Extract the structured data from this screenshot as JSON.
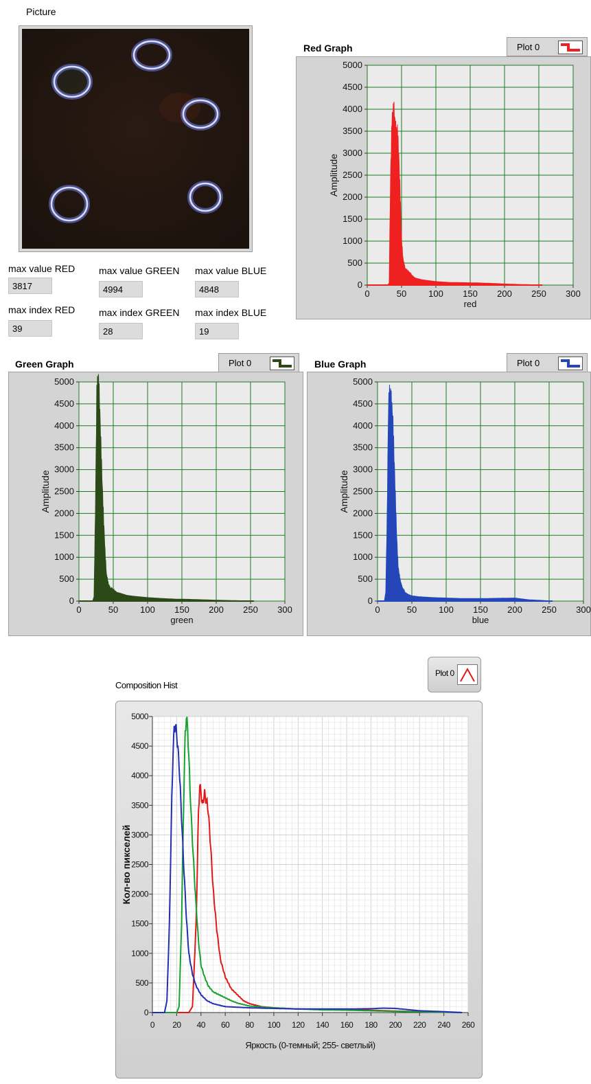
{
  "picture": {
    "label": "Picture"
  },
  "stats": {
    "max_value_red_label": "max value RED",
    "max_value_red": "3817",
    "max_value_green_label": "max value GREEN",
    "max_value_green": "4994",
    "max_value_blue_label": "max value BLUE",
    "max_value_blue": "4848",
    "max_index_red_label": "max index RED",
    "max_index_red": "39",
    "max_index_green_label": "max index GREEN",
    "max_index_green": "28",
    "max_index_blue_label": "max index BLUE",
    "max_index_blue": "19"
  },
  "red_graph": {
    "title": "Red Graph",
    "legend": "Plot 0",
    "xlabel": "red",
    "ylabel": "Amplitude",
    "color": "#ee2020"
  },
  "green_graph": {
    "title": "Green Graph",
    "legend": "Plot 0",
    "xlabel": "green",
    "ylabel": "Amplitude",
    "color": "#2b4a18"
  },
  "blue_graph": {
    "title": "Blue Graph",
    "legend": "Plot 0",
    "xlabel": "blue",
    "ylabel": "Amplitude",
    "color": "#2446b8"
  },
  "composition": {
    "title": "Composition Hist",
    "legend": "Plot 0",
    "xlabel": "Яркость (0-темный; 255- светлый)",
    "ylabel": "Кол-во пикселей"
  },
  "chart_data": [
    {
      "type": "bar",
      "title": "Red Graph",
      "xlabel": "red",
      "ylabel": "Amplitude",
      "xlim": [
        0,
        300
      ],
      "ylim": [
        0,
        5000
      ],
      "x_ticks": [
        0,
        50,
        100,
        150,
        200,
        250,
        300
      ],
      "y_ticks": [
        0,
        500,
        1000,
        1500,
        2000,
        2500,
        3000,
        3500,
        4000,
        4500,
        5000
      ],
      "grid": true,
      "series": [
        {
          "name": "Plot 0",
          "x": [
            0,
            30,
            32,
            34,
            36,
            38,
            39,
            40,
            42,
            44,
            46,
            48,
            50,
            52,
            55,
            60,
            65,
            70,
            80,
            90,
            100,
            120,
            140,
            160,
            180,
            200,
            220,
            240,
            255
          ],
          "values": [
            0,
            0,
            50,
            2500,
            3700,
            3800,
            3817,
            3700,
            3500,
            3650,
            3000,
            2000,
            1000,
            600,
            400,
            300,
            220,
            160,
            120,
            100,
            80,
            60,
            55,
            50,
            40,
            25,
            15,
            8,
            0
          ]
        }
      ]
    },
    {
      "type": "bar",
      "title": "Green Graph",
      "xlabel": "green",
      "ylabel": "Amplitude",
      "xlim": [
        0,
        300
      ],
      "ylim": [
        0,
        5000
      ],
      "x_ticks": [
        0,
        50,
        100,
        150,
        200,
        250,
        300
      ],
      "y_ticks": [
        0,
        500,
        1000,
        1500,
        2000,
        2500,
        3000,
        3500,
        4000,
        4500,
        5000
      ],
      "grid": true,
      "series": [
        {
          "name": "Plot 0",
          "x": [
            0,
            20,
            22,
            24,
            26,
            28,
            30,
            32,
            34,
            36,
            38,
            40,
            43,
            46,
            50,
            55,
            60,
            70,
            80,
            100,
            120,
            140,
            160,
            180,
            200,
            230,
            255
          ],
          "values": [
            0,
            0,
            100,
            2000,
            4500,
            4994,
            4600,
            3700,
            2700,
            1800,
            1100,
            600,
            400,
            300,
            250,
            200,
            180,
            130,
            110,
            80,
            60,
            45,
            40,
            30,
            20,
            10,
            0
          ]
        }
      ]
    },
    {
      "type": "bar",
      "title": "Blue Graph",
      "xlabel": "blue",
      "ylabel": "Amplitude",
      "xlim": [
        0,
        300
      ],
      "ylim": [
        0,
        5000
      ],
      "x_ticks": [
        0,
        50,
        100,
        150,
        200,
        250,
        300
      ],
      "y_ticks": [
        0,
        500,
        1000,
        1500,
        2000,
        2500,
        3000,
        3500,
        4000,
        4500,
        5000
      ],
      "grid": true,
      "series": [
        {
          "name": "Plot 0",
          "x": [
            0,
            10,
            12,
            14,
            16,
            18,
            19,
            20,
            22,
            24,
            26,
            28,
            30,
            33,
            36,
            40,
            45,
            50,
            60,
            80,
            100,
            120,
            140,
            160,
            180,
            200,
            210,
            220,
            240,
            255
          ],
          "values": [
            0,
            0,
            200,
            1800,
            4300,
            4800,
            4848,
            4700,
            4400,
            3300,
            2300,
            1400,
            800,
            500,
            300,
            200,
            150,
            120,
            100,
            80,
            70,
            60,
            60,
            60,
            65,
            70,
            50,
            30,
            15,
            0
          ]
        }
      ]
    },
    {
      "type": "line",
      "title": "Composition Hist",
      "xlabel": "Яркость (0-темный; 255- светлый)",
      "ylabel": "Кол-во пикселей",
      "xlim": [
        0,
        260
      ],
      "ylim": [
        0,
        5000
      ],
      "x_ticks": [
        0,
        20,
        40,
        60,
        80,
        100,
        120,
        140,
        160,
        180,
        200,
        220,
        240,
        260
      ],
      "y_ticks": [
        0,
        500,
        1000,
        1500,
        2000,
        2500,
        3000,
        3500,
        4000,
        4500,
        5000
      ],
      "grid": true,
      "series": [
        {
          "name": "red",
          "color": "#e01818",
          "x": [
            0,
            30,
            33,
            36,
            38,
            39,
            40,
            41,
            42,
            43,
            44,
            45,
            46,
            48,
            50,
            53,
            56,
            60,
            65,
            70,
            75,
            80,
            90,
            100,
            120,
            140,
            160,
            180,
            200,
            220,
            240,
            255
          ],
          "values": [
            0,
            0,
            100,
            1500,
            3400,
            3817,
            3750,
            3500,
            3600,
            3700,
            3600,
            3550,
            3400,
            2800,
            2100,
            1400,
            900,
            600,
            400,
            300,
            200,
            150,
            100,
            80,
            60,
            55,
            50,
            40,
            25,
            15,
            8,
            0
          ]
        },
        {
          "name": "green",
          "color": "#18a030",
          "x": [
            0,
            20,
            22,
            24,
            26,
            27,
            28,
            29,
            30,
            32,
            34,
            36,
            38,
            40,
            43,
            46,
            50,
            55,
            60,
            65,
            70,
            80,
            100,
            120,
            140,
            160,
            180,
            200,
            230,
            255
          ],
          "values": [
            0,
            0,
            100,
            1500,
            3800,
            4700,
            4994,
            4800,
            4300,
            3300,
            2500,
            1800,
            1200,
            800,
            600,
            450,
            350,
            300,
            250,
            200,
            160,
            110,
            80,
            60,
            45,
            40,
            30,
            20,
            10,
            0
          ]
        },
        {
          "name": "blue",
          "color": "#2030b0",
          "x": [
            0,
            10,
            12,
            14,
            16,
            17,
            18,
            19,
            20,
            22,
            24,
            26,
            28,
            30,
            33,
            36,
            40,
            45,
            50,
            60,
            80,
            100,
            120,
            140,
            160,
            180,
            190,
            200,
            210,
            220,
            240,
            255
          ],
          "values": [
            0,
            0,
            200,
            1500,
            3600,
            4400,
            4800,
            4848,
            4700,
            4200,
            3300,
            2400,
            1600,
            1000,
            650,
            450,
            300,
            200,
            150,
            100,
            80,
            70,
            60,
            60,
            60,
            65,
            75,
            70,
            50,
            30,
            15,
            0
          ]
        }
      ]
    }
  ]
}
